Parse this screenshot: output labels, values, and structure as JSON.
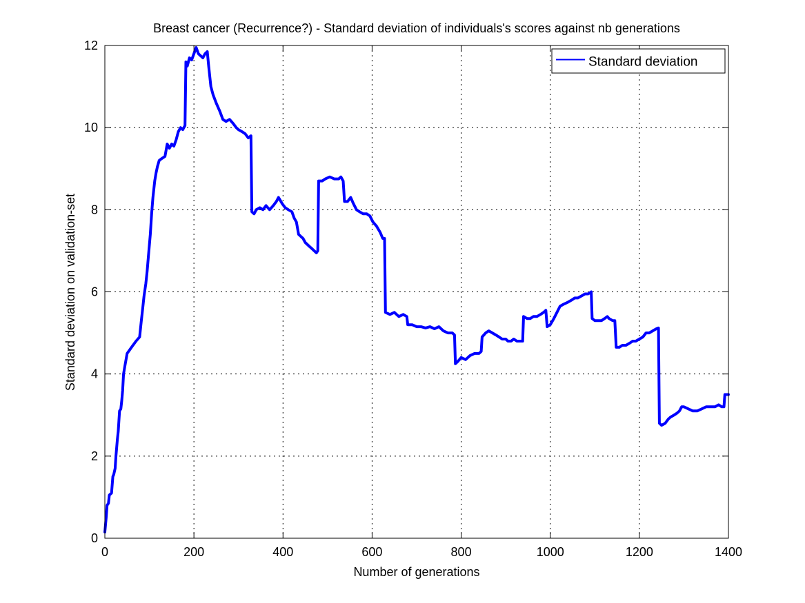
{
  "chart_data": {
    "type": "line",
    "title": "Breast cancer (Recurrence?) - Standard deviation of individuals's scores against nb generations",
    "xlabel": "Number of generations",
    "ylabel": "Standard deviation on validation-set",
    "xlim": [
      0,
      1400
    ],
    "ylim": [
      0,
      12
    ],
    "xticks": [
      "0",
      "200",
      "400",
      "600",
      "800",
      "1000",
      "1200",
      "1400"
    ],
    "yticks": [
      "0",
      "2",
      "4",
      "6",
      "8",
      "10",
      "12"
    ],
    "grid": true,
    "legend": {
      "position": "top-right"
    },
    "series": [
      {
        "name": "Standard deviation",
        "color": "#0000ff",
        "points": [
          [
            0,
            0.15
          ],
          [
            3,
            0.5
          ],
          [
            5,
            0.8
          ],
          [
            8,
            0.85
          ],
          [
            10,
            1.05
          ],
          [
            15,
            1.1
          ],
          [
            18,
            1.5
          ],
          [
            20,
            1.55
          ],
          [
            23,
            1.7
          ],
          [
            25,
            2.0
          ],
          [
            28,
            2.4
          ],
          [
            30,
            2.6
          ],
          [
            33,
            3.1
          ],
          [
            36,
            3.15
          ],
          [
            38,
            3.35
          ],
          [
            40,
            3.6
          ],
          [
            42,
            4.0
          ],
          [
            45,
            4.2
          ],
          [
            50,
            4.5
          ],
          [
            60,
            4.65
          ],
          [
            70,
            4.8
          ],
          [
            78,
            4.9
          ],
          [
            82,
            5.3
          ],
          [
            85,
            5.6
          ],
          [
            88,
            5.9
          ],
          [
            92,
            6.2
          ],
          [
            95,
            6.5
          ],
          [
            98,
            6.9
          ],
          [
            102,
            7.4
          ],
          [
            105,
            7.9
          ],
          [
            108,
            8.3
          ],
          [
            112,
            8.7
          ],
          [
            115,
            8.9
          ],
          [
            118,
            9.05
          ],
          [
            122,
            9.2
          ],
          [
            128,
            9.25
          ],
          [
            135,
            9.3
          ],
          [
            140,
            9.6
          ],
          [
            145,
            9.5
          ],
          [
            150,
            9.6
          ],
          [
            155,
            9.55
          ],
          [
            160,
            9.7
          ],
          [
            165,
            9.9
          ],
          [
            170,
            10.0
          ],
          [
            175,
            9.95
          ],
          [
            180,
            10.05
          ],
          [
            182,
            11.6
          ],
          [
            185,
            11.5
          ],
          [
            190,
            11.7
          ],
          [
            195,
            11.65
          ],
          [
            200,
            11.8
          ],
          [
            205,
            11.95
          ],
          [
            210,
            11.8
          ],
          [
            215,
            11.75
          ],
          [
            220,
            11.7
          ],
          [
            225,
            11.8
          ],
          [
            230,
            11.85
          ],
          [
            233,
            11.5
          ],
          [
            238,
            11.0
          ],
          [
            243,
            10.8
          ],
          [
            250,
            10.6
          ],
          [
            258,
            10.4
          ],
          [
            265,
            10.2
          ],
          [
            272,
            10.15
          ],
          [
            280,
            10.2
          ],
          [
            288,
            10.1
          ],
          [
            295,
            10.0
          ],
          [
            300,
            9.95
          ],
          [
            308,
            9.9
          ],
          [
            315,
            9.85
          ],
          [
            322,
            9.75
          ],
          [
            328,
            9.8
          ],
          [
            330,
            7.95
          ],
          [
            335,
            7.9
          ],
          [
            340,
            8.0
          ],
          [
            348,
            8.05
          ],
          [
            355,
            8.0
          ],
          [
            362,
            8.1
          ],
          [
            370,
            8.0
          ],
          [
            378,
            8.1
          ],
          [
            385,
            8.2
          ],
          [
            390,
            8.3
          ],
          [
            398,
            8.15
          ],
          [
            405,
            8.05
          ],
          [
            412,
            8.0
          ],
          [
            420,
            7.95
          ],
          [
            425,
            7.8
          ],
          [
            430,
            7.7
          ],
          [
            435,
            7.4
          ],
          [
            440,
            7.35
          ],
          [
            445,
            7.3
          ],
          [
            450,
            7.2
          ],
          [
            455,
            7.15
          ],
          [
            460,
            7.1
          ],
          [
            465,
            7.05
          ],
          [
            470,
            7.0
          ],
          [
            475,
            6.95
          ],
          [
            478,
            7.0
          ],
          [
            480,
            8.7
          ],
          [
            488,
            8.7
          ],
          [
            495,
            8.75
          ],
          [
            505,
            8.8
          ],
          [
            515,
            8.75
          ],
          [
            525,
            8.75
          ],
          [
            530,
            8.8
          ],
          [
            535,
            8.7
          ],
          [
            538,
            8.2
          ],
          [
            545,
            8.2
          ],
          [
            552,
            8.3
          ],
          [
            558,
            8.15
          ],
          [
            565,
            8.0
          ],
          [
            572,
            7.95
          ],
          [
            580,
            7.9
          ],
          [
            588,
            7.9
          ],
          [
            595,
            7.85
          ],
          [
            602,
            7.7
          ],
          [
            610,
            7.6
          ],
          [
            618,
            7.45
          ],
          [
            624,
            7.3
          ],
          [
            628,
            7.3
          ],
          [
            630,
            5.5
          ],
          [
            640,
            5.45
          ],
          [
            650,
            5.5
          ],
          [
            660,
            5.4
          ],
          [
            670,
            5.45
          ],
          [
            678,
            5.4
          ],
          [
            680,
            5.2
          ],
          [
            690,
            5.2
          ],
          [
            700,
            5.15
          ],
          [
            710,
            5.15
          ],
          [
            720,
            5.12
          ],
          [
            730,
            5.15
          ],
          [
            740,
            5.1
          ],
          [
            750,
            5.15
          ],
          [
            760,
            5.05
          ],
          [
            770,
            5.0
          ],
          [
            780,
            5.0
          ],
          [
            785,
            4.95
          ],
          [
            787,
            4.25
          ],
          [
            792,
            4.3
          ],
          [
            800,
            4.4
          ],
          [
            810,
            4.35
          ],
          [
            820,
            4.45
          ],
          [
            830,
            4.5
          ],
          [
            840,
            4.5
          ],
          [
            845,
            4.55
          ],
          [
            847,
            4.9
          ],
          [
            855,
            5.0
          ],
          [
            862,
            5.05
          ],
          [
            870,
            5.0
          ],
          [
            878,
            4.95
          ],
          [
            885,
            4.9
          ],
          [
            892,
            4.85
          ],
          [
            900,
            4.85
          ],
          [
            905,
            4.8
          ],
          [
            912,
            4.8
          ],
          [
            918,
            4.85
          ],
          [
            925,
            4.8
          ],
          [
            932,
            4.8
          ],
          [
            938,
            4.8
          ],
          [
            940,
            5.4
          ],
          [
            948,
            5.35
          ],
          [
            955,
            5.35
          ],
          [
            962,
            5.4
          ],
          [
            970,
            5.4
          ],
          [
            978,
            5.45
          ],
          [
            985,
            5.5
          ],
          [
            990,
            5.55
          ],
          [
            993,
            5.15
          ],
          [
            1000,
            5.2
          ],
          [
            1008,
            5.35
          ],
          [
            1015,
            5.5
          ],
          [
            1022,
            5.65
          ],
          [
            1030,
            5.7
          ],
          [
            1040,
            5.75
          ],
          [
            1048,
            5.8
          ],
          [
            1055,
            5.85
          ],
          [
            1062,
            5.85
          ],
          [
            1070,
            5.9
          ],
          [
            1078,
            5.95
          ],
          [
            1085,
            5.95
          ],
          [
            1092,
            6.0
          ],
          [
            1094,
            5.35
          ],
          [
            1100,
            5.3
          ],
          [
            1108,
            5.3
          ],
          [
            1115,
            5.3
          ],
          [
            1122,
            5.35
          ],
          [
            1128,
            5.4
          ],
          [
            1132,
            5.35
          ],
          [
            1140,
            5.3
          ],
          [
            1145,
            5.3
          ],
          [
            1148,
            4.65
          ],
          [
            1155,
            4.65
          ],
          [
            1162,
            4.7
          ],
          [
            1170,
            4.7
          ],
          [
            1178,
            4.75
          ],
          [
            1185,
            4.8
          ],
          [
            1192,
            4.8
          ],
          [
            1200,
            4.85
          ],
          [
            1208,
            4.9
          ],
          [
            1215,
            5.0
          ],
          [
            1222,
            5.0
          ],
          [
            1230,
            5.05
          ],
          [
            1238,
            5.1
          ],
          [
            1243,
            5.12
          ],
          [
            1245,
            2.8
          ],
          [
            1250,
            2.75
          ],
          [
            1258,
            2.8
          ],
          [
            1265,
            2.9
          ],
          [
            1270,
            2.95
          ],
          [
            1278,
            3.0
          ],
          [
            1285,
            3.05
          ],
          [
            1290,
            3.1
          ],
          [
            1295,
            3.2
          ],
          [
            1300,
            3.2
          ],
          [
            1310,
            3.15
          ],
          [
            1320,
            3.1
          ],
          [
            1330,
            3.1
          ],
          [
            1340,
            3.15
          ],
          [
            1350,
            3.2
          ],
          [
            1360,
            3.2
          ],
          [
            1370,
            3.2
          ],
          [
            1378,
            3.25
          ],
          [
            1385,
            3.2
          ],
          [
            1390,
            3.2
          ],
          [
            1392,
            3.5
          ],
          [
            1396,
            3.5
          ],
          [
            1400,
            3.5
          ]
        ]
      }
    ]
  }
}
